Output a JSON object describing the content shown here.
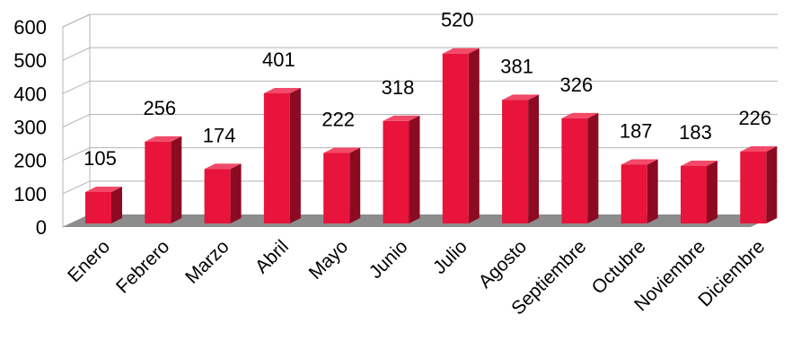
{
  "chart_data": {
    "type": "bar",
    "categories": [
      "Enero",
      "Febrero",
      "Marzo",
      "Abril",
      "Mayo",
      "Junio",
      "Julio",
      "Agosto",
      "Septiembre",
      "Octubre",
      "Noviembre",
      "Diciembre"
    ],
    "values": [
      105,
      256,
      174,
      401,
      222,
      318,
      520,
      381,
      326,
      187,
      183,
      226
    ],
    "ylim": [
      0,
      600
    ],
    "yticks": [
      "0",
      "100",
      "200",
      "300",
      "400",
      "500",
      "600"
    ],
    "grid": true,
    "three_d": true,
    "legend": "none",
    "colors": {
      "bar_front": "#e8143c",
      "bar_side": "#8c0a22",
      "bar_top": "#f24a68",
      "floor": "#8c8c8c",
      "gridline": "#b4b4b4"
    }
  }
}
